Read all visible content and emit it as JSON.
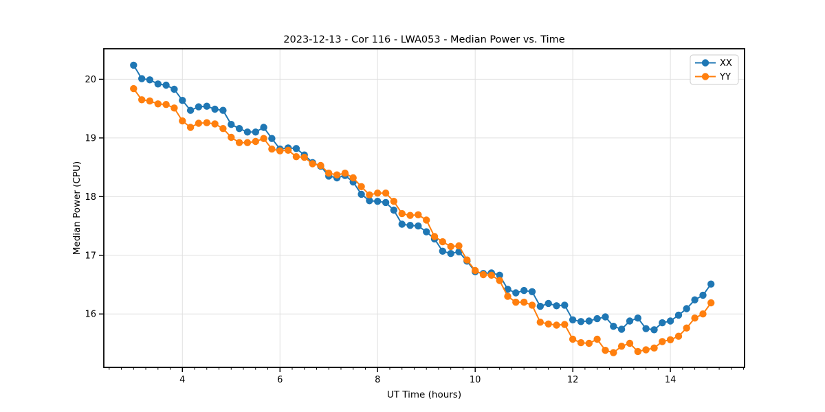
{
  "chart_data": {
    "type": "line",
    "title": "2023-12-13 - Cor 116 - LWA053 - Median Power vs. Time",
    "xlabel": "UT Time (hours)",
    "ylabel": "Median Power (CPU)",
    "xlim": [
      2.39,
      15.52
    ],
    "ylim": [
      15.09,
      20.52
    ],
    "xticks": [
      4,
      6,
      8,
      10,
      12,
      14
    ],
    "yticks": [
      16,
      17,
      18,
      19,
      20
    ],
    "x_minor_step": 0.25,
    "grid": true,
    "grid_color": "#e0e0e0",
    "legend_position": "upper right",
    "x": [
      3.0,
      3.167,
      3.333,
      3.5,
      3.667,
      3.833,
      4.0,
      4.167,
      4.333,
      4.5,
      4.667,
      4.833,
      5.0,
      5.167,
      5.333,
      5.5,
      5.667,
      5.833,
      6.0,
      6.167,
      6.333,
      6.5,
      6.667,
      6.833,
      7.0,
      7.167,
      7.333,
      7.5,
      7.667,
      7.833,
      8.0,
      8.167,
      8.333,
      8.5,
      8.667,
      8.833,
      9.0,
      9.167,
      9.333,
      9.5,
      9.667,
      9.833,
      10.0,
      10.167,
      10.333,
      10.5,
      10.667,
      10.833,
      11.0,
      11.167,
      11.333,
      11.5,
      11.667,
      11.833,
      12.0,
      12.167,
      12.333,
      12.5,
      12.667,
      12.833,
      13.0,
      13.167,
      13.333,
      13.5,
      13.667,
      13.833,
      14.0,
      14.167,
      14.333,
      14.5,
      14.667,
      14.833
    ],
    "series": [
      {
        "name": "XX",
        "color": "#1f77b4",
        "marker": "circle",
        "values": [
          20.24,
          20.01,
          19.99,
          19.92,
          19.9,
          19.83,
          19.64,
          19.47,
          19.53,
          19.54,
          19.49,
          19.47,
          19.23,
          19.16,
          19.1,
          19.1,
          19.18,
          18.99,
          18.81,
          18.83,
          18.82,
          18.71,
          18.58,
          18.52,
          18.35,
          18.32,
          18.36,
          18.25,
          18.04,
          17.93,
          17.92,
          17.9,
          17.77,
          17.53,
          17.51,
          17.5,
          17.4,
          17.28,
          17.07,
          17.03,
          17.06,
          16.9,
          16.72,
          16.69,
          16.7,
          16.66,
          16.42,
          16.36,
          16.4,
          16.38,
          16.13,
          16.18,
          16.14,
          16.15,
          15.9,
          15.87,
          15.88,
          15.92,
          15.95,
          15.79,
          15.74,
          15.88,
          15.93,
          15.75,
          15.73,
          15.85,
          15.88,
          15.98,
          16.09,
          16.24,
          16.32,
          16.51
        ]
      },
      {
        "name": "YY",
        "color": "#ff7f0e",
        "marker": "circle",
        "values": [
          19.84,
          19.65,
          19.63,
          19.58,
          19.57,
          19.51,
          19.29,
          19.18,
          19.25,
          19.26,
          19.24,
          19.16,
          19.01,
          18.92,
          18.92,
          18.94,
          18.99,
          18.81,
          18.78,
          18.79,
          18.68,
          18.67,
          18.56,
          18.53,
          18.4,
          18.37,
          18.4,
          18.32,
          18.17,
          18.03,
          18.06,
          18.06,
          17.92,
          17.71,
          17.68,
          17.69,
          17.6,
          17.32,
          17.23,
          17.15,
          17.16,
          16.92,
          16.74,
          16.67,
          16.66,
          16.57,
          16.3,
          16.2,
          16.2,
          16.15,
          15.86,
          15.83,
          15.81,
          15.82,
          15.57,
          15.51,
          15.5,
          15.57,
          15.38,
          15.34,
          15.45,
          15.5,
          15.36,
          15.39,
          15.42,
          15.53,
          15.56,
          15.62,
          15.76,
          15.93,
          16.0,
          16.19
        ]
      }
    ]
  }
}
